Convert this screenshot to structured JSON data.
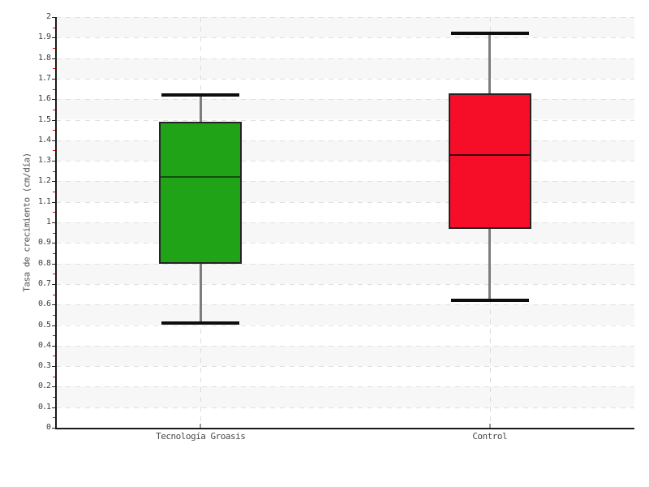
{
  "chart_data": {
    "type": "boxplot",
    "title": "",
    "xlabel": "",
    "ylabel": "Tasa de crecimiento (cm/día)",
    "ylim": [
      0,
      2
    ],
    "ytick_step": 0.1,
    "yminor_tick_step": 0.05,
    "grid": "horizontal dashed lines every 0.1, vertical dashed line at each category, alternating 0.1 shaded bands",
    "legend": "none",
    "categories": [
      "Tecnología Groasis",
      "Control"
    ],
    "series": [
      {
        "name": "Tecnología Groasis",
        "min": 0.51,
        "q1": 0.8,
        "median": 1.22,
        "q3": 1.49,
        "max": 1.62,
        "fill": "#21a318",
        "median_color": "#11500f"
      },
      {
        "name": "Control",
        "min": 0.62,
        "q1": 0.97,
        "median": 1.33,
        "q3": 1.63,
        "max": 1.92,
        "fill": "#f60d28",
        "median_color": "#3a040c"
      }
    ],
    "colors": {
      "band_shade": "#f7f7f7",
      "grid_line": "#e0e0e0",
      "axis_line": "#1a1a1a",
      "major_tick": "#222222",
      "minor_tick": "#f40000",
      "whisker_line": "#7d7d7d",
      "whisker_cap": "#0d0d0d",
      "box_border": "#242424",
      "tick_label": "#3c3c3c",
      "category_label": "#4a4a4a"
    }
  }
}
